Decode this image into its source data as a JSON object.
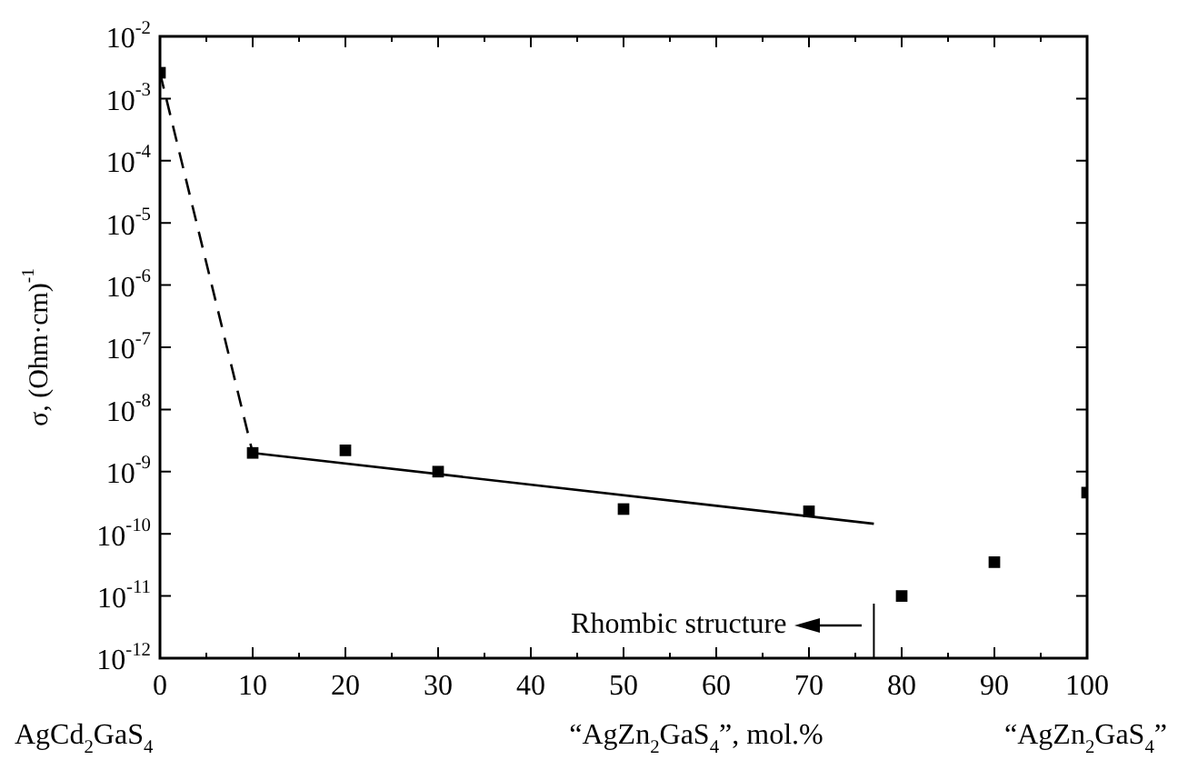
{
  "chart_data": {
    "type": "scatter",
    "xlabel": "“AgZn$_{2}$GaS$_{4}$”, mol.%",
    "ylabel": "σ, (Ohm·cm)$^{-1}$",
    "log": "y",
    "grid": false,
    "legend": false,
    "xlim": [
      0,
      100
    ],
    "xticks": [
      0,
      {
        "value": 5,
        "label": null
      },
      10,
      {
        "value": 15,
        "label": null
      },
      20,
      {
        "value": 25,
        "label": null
      },
      30,
      {
        "value": 35,
        "label": null
      },
      40,
      {
        "value": 45,
        "label": null
      },
      50,
      {
        "value": 55,
        "label": null
      },
      60,
      {
        "value": 65,
        "label": null
      },
      70,
      {
        "value": 75,
        "label": null
      },
      80,
      {
        "value": 85,
        "label": null
      },
      90,
      {
        "value": 95,
        "label": null
      },
      100
    ],
    "ylim": [
      1e-12,
      0.01
    ],
    "yticks": [
      {
        "value": 1e-12,
        "label": "10$^{-12}$"
      },
      {
        "value": 1e-11,
        "label": "10$^{-11}$"
      },
      {
        "value": 1e-10,
        "label": "10$^{-10}$"
      },
      {
        "value": 1e-09,
        "label": "10$^{-9}$"
      },
      {
        "value": 1e-08,
        "label": "10$^{-8}$"
      },
      {
        "value": 1e-07,
        "label": "10$^{-7}$"
      },
      {
        "value": 1e-06,
        "label": "10$^{-6}$"
      },
      {
        "value": 1e-05,
        "label": "10$^{-5}$"
      },
      {
        "value": 0.0001,
        "label": "10$^{-4}$"
      },
      {
        "value": 0.001,
        "label": "10$^{-3}$"
      },
      {
        "value": 0.01,
        "label": "10$^{-2}$"
      }
    ],
    "series": [
      {
        "marker": "square",
        "color": "#000000",
        "x": [
          0,
          10,
          20,
          30,
          50,
          70,
          80,
          90,
          100
        ],
        "values": [
          0.0026,
          2e-09,
          2.2e-09,
          1e-09,
          2.5e-10,
          2.3e-10,
          1e-11,
          3.5e-11,
          4.6e-10
        ]
      },
      {
        "type": "line",
        "marker": "none",
        "color": "#000000",
        "line_style": "dashed",
        "x": [
          0,
          10
        ],
        "values": [
          0.0026,
          2e-09
        ]
      },
      {
        "type": "line",
        "marker": "none",
        "color": "#000000",
        "line_style": "solid",
        "x": [
          10,
          77
        ],
        "values": [
          2e-09,
          1.45e-10
        ]
      }
    ],
    "ref_lines": [
      {
        "axis": "x",
        "value": 77,
        "label": "Rhombic structure"
      }
    ],
    "annotations": [
      "AgCd$_{2}$GaS$_{4}$",
      "“AgZn$_{2}$GaS$_{4}$”"
    ]
  }
}
